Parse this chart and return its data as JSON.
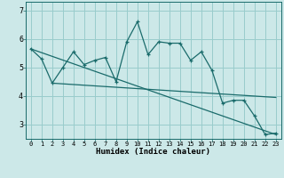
{
  "xlabel": "Humidex (Indice chaleur)",
  "bg_color": "#cce8e8",
  "grid_color": "#99cccc",
  "line_color": "#1a6b6b",
  "xlim": [
    -0.5,
    23.5
  ],
  "ylim": [
    2.5,
    7.3
  ],
  "yticks": [
    3,
    4,
    5,
    6,
    7
  ],
  "xticks": [
    0,
    1,
    2,
    3,
    4,
    5,
    6,
    7,
    8,
    9,
    10,
    11,
    12,
    13,
    14,
    15,
    16,
    17,
    18,
    19,
    20,
    21,
    22,
    23
  ],
  "x_data": [
    0,
    1,
    2,
    3,
    4,
    5,
    6,
    7,
    8,
    9,
    10,
    11,
    12,
    13,
    14,
    15,
    16,
    17,
    18,
    19,
    20,
    21,
    22,
    23
  ],
  "y_jagged": [
    5.65,
    5.3,
    4.45,
    5.0,
    5.55,
    5.1,
    5.25,
    5.35,
    4.5,
    5.9,
    6.6,
    5.45,
    5.9,
    5.85,
    5.85,
    5.25,
    5.55,
    4.9,
    3.75,
    3.85,
    3.85,
    3.3,
    2.65,
    2.7
  ],
  "trend1_x": [
    0,
    23
  ],
  "trend1_y": [
    5.65,
    2.65
  ],
  "trend2_x": [
    2,
    23
  ],
  "trend2_y": [
    4.45,
    3.95
  ]
}
